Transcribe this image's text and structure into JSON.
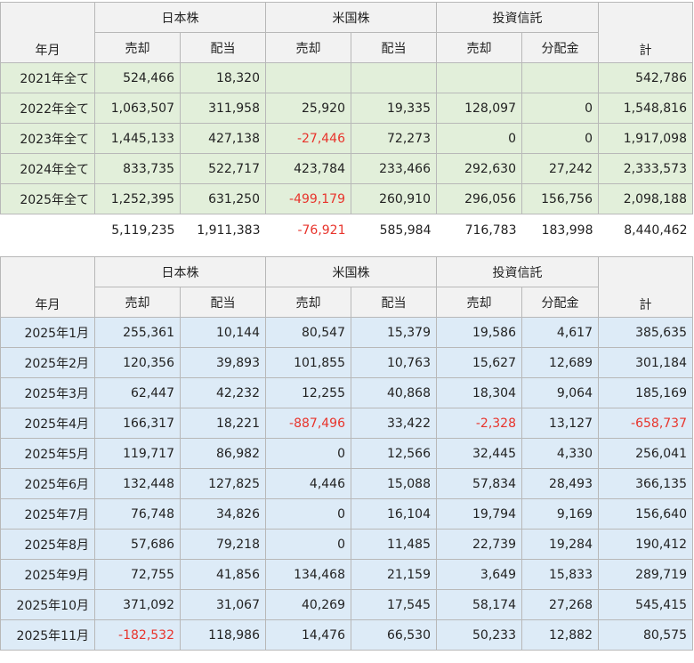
{
  "annual": {
    "header": {
      "year_month": "年月",
      "jp_stock": "日本株",
      "us_stock": "米国株",
      "fund": "投資信託",
      "sale": "売却",
      "dividend": "配当",
      "distribution": "分配金",
      "total": "計"
    },
    "rows": [
      {
        "label": "2021年全て",
        "jp_sale": "524,466",
        "jp_div": "18,320",
        "us_sale": "",
        "us_div": "",
        "fund_sale": "",
        "fund_dist": "",
        "total": "542,786"
      },
      {
        "label": "2022年全て",
        "jp_sale": "1,063,507",
        "jp_div": "311,958",
        "us_sale": "25,920",
        "us_div": "19,335",
        "fund_sale": "128,097",
        "fund_dist": "0",
        "total": "1,548,816"
      },
      {
        "label": "2023年全て",
        "jp_sale": "1,445,133",
        "jp_div": "427,138",
        "us_sale": "-27,446",
        "us_div": "72,273",
        "fund_sale": "0",
        "fund_dist": "0",
        "total": "1,917,098"
      },
      {
        "label": "2024年全て",
        "jp_sale": "833,735",
        "jp_div": "522,717",
        "us_sale": "423,784",
        "us_div": "233,466",
        "fund_sale": "292,630",
        "fund_dist": "27,242",
        "total": "2,333,573"
      },
      {
        "label": "2025年全て",
        "jp_sale": "1,252,395",
        "jp_div": "631,250",
        "us_sale": "-499,179",
        "us_div": "260,910",
        "fund_sale": "296,056",
        "fund_dist": "156,756",
        "total": "2,098,188"
      }
    ],
    "totals": {
      "jp_sale": "5,119,235",
      "jp_div": "1,911,383",
      "us_sale": "-76,921",
      "us_div": "585,984",
      "fund_sale": "716,783",
      "fund_dist": "183,998",
      "total": "8,440,462"
    }
  },
  "monthly": {
    "header": {
      "year_month": "年月",
      "jp_stock": "日本株",
      "us_stock": "米国株",
      "fund": "投資信託",
      "sale": "売却",
      "dividend": "配当",
      "distribution": "分配金",
      "total": "計"
    },
    "rows": [
      {
        "label": "2025年1月",
        "jp_sale": "255,361",
        "jp_div": "10,144",
        "us_sale": "80,547",
        "us_div": "15,379",
        "fund_sale": "19,586",
        "fund_dist": "4,617",
        "total": "385,635"
      },
      {
        "label": "2025年2月",
        "jp_sale": "120,356",
        "jp_div": "39,893",
        "us_sale": "101,855",
        "us_div": "10,763",
        "fund_sale": "15,627",
        "fund_dist": "12,689",
        "total": "301,184"
      },
      {
        "label": "2025年3月",
        "jp_sale": "62,447",
        "jp_div": "42,232",
        "us_sale": "12,255",
        "us_div": "40,868",
        "fund_sale": "18,304",
        "fund_dist": "9,064",
        "total": "185,169"
      },
      {
        "label": "2025年4月",
        "jp_sale": "166,317",
        "jp_div": "18,221",
        "us_sale": "-887,496",
        "us_div": "33,422",
        "fund_sale": "-2,328",
        "fund_dist": "13,127",
        "total": "-658,737"
      },
      {
        "label": "2025年5月",
        "jp_sale": "119,717",
        "jp_div": "86,982",
        "us_sale": "0",
        "us_div": "12,566",
        "fund_sale": "32,445",
        "fund_dist": "4,330",
        "total": "256,041"
      },
      {
        "label": "2025年6月",
        "jp_sale": "132,448",
        "jp_div": "127,825",
        "us_sale": "4,446",
        "us_div": "15,088",
        "fund_sale": "57,834",
        "fund_dist": "28,493",
        "total": "366,135"
      },
      {
        "label": "2025年7月",
        "jp_sale": "76,748",
        "jp_div": "34,826",
        "us_sale": "0",
        "us_div": "16,104",
        "fund_sale": "19,794",
        "fund_dist": "9,169",
        "total": "156,640"
      },
      {
        "label": "2025年8月",
        "jp_sale": "57,686",
        "jp_div": "79,218",
        "us_sale": "0",
        "us_div": "11,485",
        "fund_sale": "22,739",
        "fund_dist": "19,284",
        "total": "190,412"
      },
      {
        "label": "2025年9月",
        "jp_sale": "72,755",
        "jp_div": "41,856",
        "us_sale": "134,468",
        "us_div": "21,159",
        "fund_sale": "3,649",
        "fund_dist": "15,833",
        "total": "289,719"
      },
      {
        "label": "2025年10月",
        "jp_sale": "371,092",
        "jp_div": "31,067",
        "us_sale": "40,269",
        "us_div": "17,545",
        "fund_sale": "58,174",
        "fund_dist": "27,268",
        "total": "545,415"
      },
      {
        "label": "2025年11月",
        "jp_sale": "-182,532",
        "jp_div": "118,986",
        "us_sale": "14,476",
        "us_div": "66,530",
        "fund_sale": "50,233",
        "fund_dist": "12,882",
        "total": "80,575"
      }
    ]
  },
  "colors": {
    "header_bg": "#f2f2f2",
    "annual_row_bg": "#e2efda",
    "monthly_row_bg": "#ddebf7",
    "negative_text": "#e8342c",
    "grid_border": "#b8b8b8"
  }
}
